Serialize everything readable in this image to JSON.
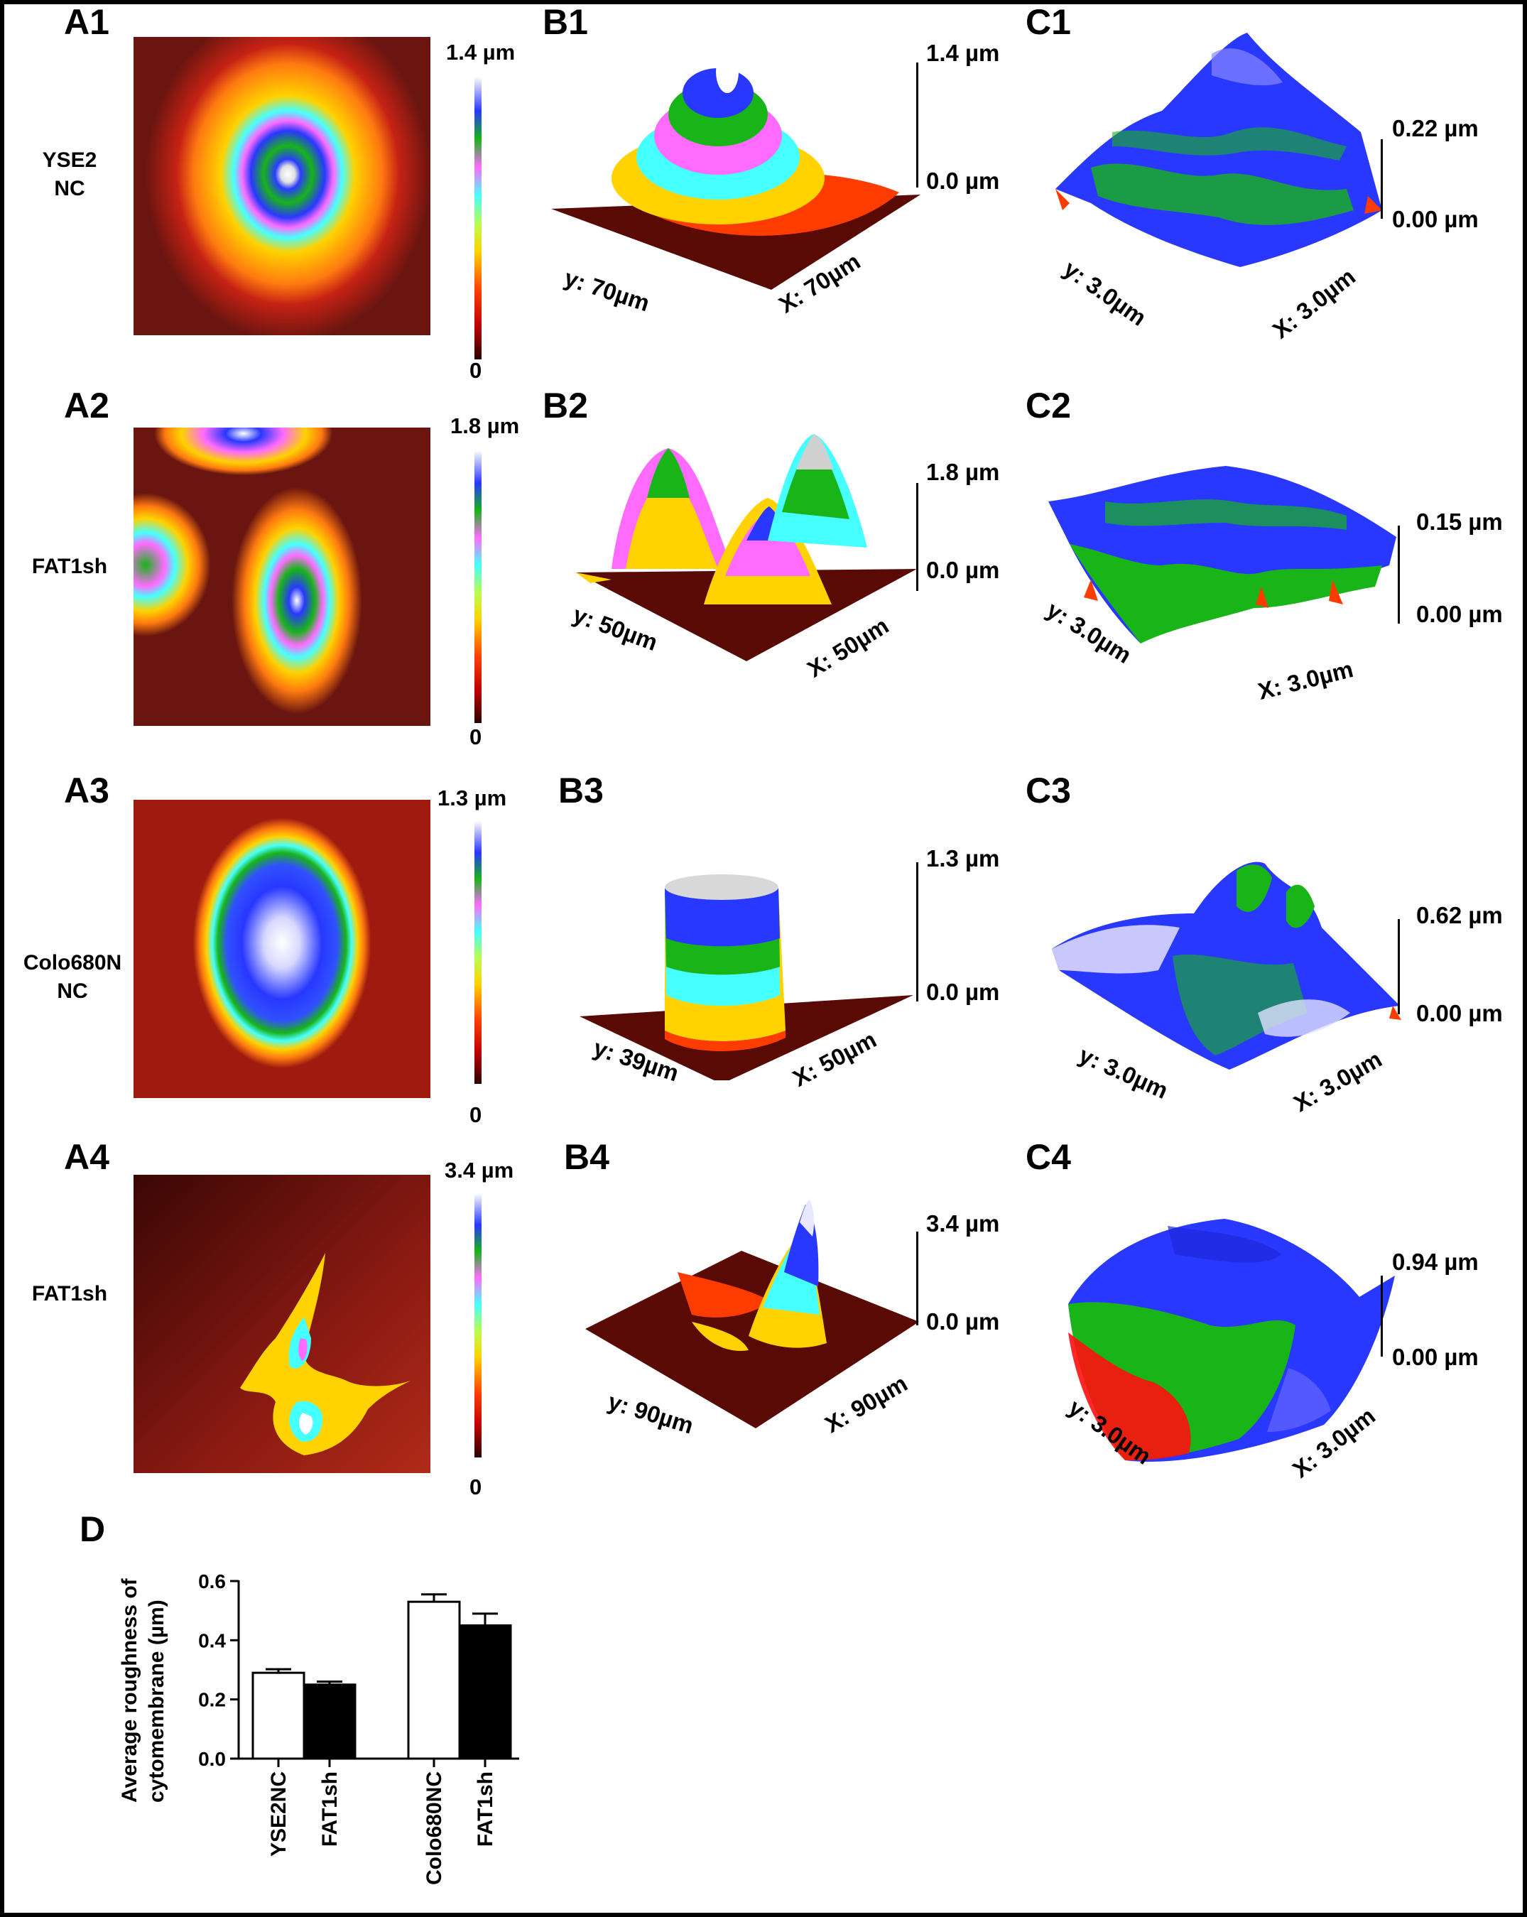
{
  "panels": {
    "A1": "A1",
    "A2": "A2",
    "A3": "A3",
    "A4": "A4",
    "B1": "B1",
    "B2": "B2",
    "B3": "B3",
    "B4": "B4",
    "C1": "C1",
    "C2": "C2",
    "C3": "C3",
    "C4": "C4",
    "D": "D"
  },
  "rows": [
    {
      "label_line1": "YSE2",
      "label_line2": "NC",
      "a_max": "1.4 µm",
      "a_min": "0",
      "b_max": "1.4 µm",
      "b_min": "0.0 µm",
      "b_y": "y: 70µm",
      "b_x": "X: 70µm",
      "c_max": "0.22 µm",
      "c_min": "0.00 µm",
      "c_y": "y: 3.0µm",
      "c_x": "X: 3.0µm"
    },
    {
      "label_line1": "FAT1sh",
      "label_line2": "",
      "a_max": "1.8 µm",
      "a_min": "0",
      "b_max": "1.8 µm",
      "b_min": "0.0 µm",
      "b_y": "y: 50µm",
      "b_x": "X: 50µm",
      "c_max": "0.15 µm",
      "c_min": "0.00 µm",
      "c_y": "y: 3.0µm",
      "c_x": "X: 3.0µm"
    },
    {
      "label_line1": "Colo680N",
      "label_line2": "NC",
      "a_max": "1.3 µm",
      "a_min": "0",
      "b_max": "1.3 µm",
      "b_min": "0.0 µm",
      "b_y": "y: 39µm",
      "b_x": "X: 50µm",
      "c_max": "0.62 µm",
      "c_min": "0.00 µm",
      "c_y": "y: 3.0µm",
      "c_x": "X: 3.0µm"
    },
    {
      "label_line1": "FAT1sh",
      "label_line2": "",
      "a_max": "3.4 µm",
      "a_min": "0",
      "b_max": "3.4 µm",
      "b_min": "0.0 µm",
      "b_y": "y: 90µm",
      "b_x": "X: 90µm",
      "c_max": "0.94 µm",
      "c_min": "0.00 µm",
      "c_y": "y: 3.0µm",
      "c_x": "X: 3.0µm"
    }
  ],
  "colors": {
    "height_scale": [
      "#2a0000",
      "#c00000",
      "#ff3c00",
      "#ffd200",
      "#b8ff50",
      "#46ffff",
      "#ff6bff",
      "#18b418",
      "#2838ff",
      "#ffffff"
    ],
    "bar_nc": "#ffffff",
    "bar_fat1sh": "#000000"
  },
  "chart_data": {
    "type": "bar",
    "ylabel_line1": "Average roughness of",
    "ylabel_line2": "cytomembrane (µm)",
    "ylim": [
      0,
      0.6
    ],
    "yticks": [
      "0.0",
      "0.2",
      "0.4",
      "0.6"
    ],
    "categories": [
      "YSE2NC",
      "FAT1sh",
      "Colo680NC",
      "FAT1sh"
    ],
    "values": [
      0.29,
      0.25,
      0.53,
      0.45
    ],
    "errors": [
      0.012,
      0.01,
      0.025,
      0.04
    ],
    "fills": [
      "#ffffff",
      "#000000",
      "#ffffff",
      "#000000"
    ],
    "grid": false
  }
}
